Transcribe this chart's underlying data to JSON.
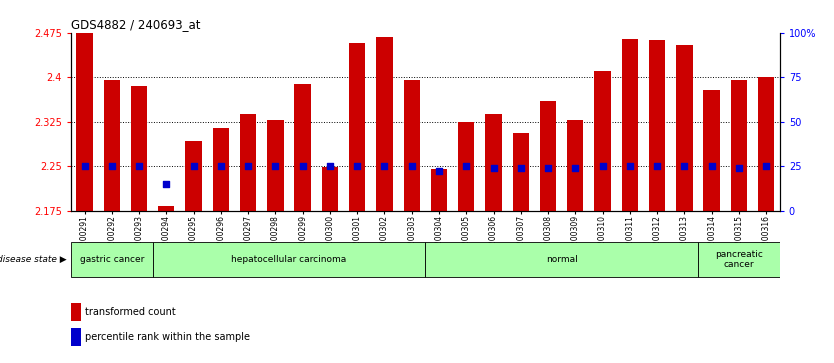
{
  "title": "GDS4882 / 240693_at",
  "samples": [
    "GSM1200291",
    "GSM1200292",
    "GSM1200293",
    "GSM1200294",
    "GSM1200295",
    "GSM1200296",
    "GSM1200297",
    "GSM1200298",
    "GSM1200299",
    "GSM1200300",
    "GSM1200301",
    "GSM1200302",
    "GSM1200303",
    "GSM1200304",
    "GSM1200305",
    "GSM1200306",
    "GSM1200307",
    "GSM1200308",
    "GSM1200309",
    "GSM1200310",
    "GSM1200311",
    "GSM1200312",
    "GSM1200313",
    "GSM1200314",
    "GSM1200315",
    "GSM1200316"
  ],
  "bar_values": [
    2.475,
    2.395,
    2.385,
    2.183,
    2.293,
    2.315,
    2.338,
    2.328,
    2.388,
    2.248,
    2.458,
    2.468,
    2.395,
    2.245,
    2.325,
    2.338,
    2.305,
    2.36,
    2.328,
    2.41,
    2.465,
    2.462,
    2.455,
    2.378,
    2.395,
    2.4
  ],
  "percentile_values": [
    25,
    25,
    25,
    15,
    25,
    25,
    25,
    25,
    25,
    25,
    25,
    25,
    25,
    22,
    25,
    24,
    24,
    24,
    24,
    25,
    25,
    25,
    25,
    25,
    24,
    25
  ],
  "bar_color": "#cc0000",
  "dot_color": "#0000cc",
  "ylim_left": [
    2.175,
    2.475
  ],
  "ylim_right": [
    0,
    100
  ],
  "yticks_left": [
    2.175,
    2.25,
    2.325,
    2.4,
    2.475
  ],
  "ytick_labels_left": [
    "2.175",
    "2.25",
    "2.325",
    "2.4",
    "2.475"
  ],
  "yticks_right": [
    0,
    25,
    50,
    75,
    100
  ],
  "ytick_labels_right": [
    "0",
    "25",
    "50",
    "75",
    "100%"
  ],
  "grid_values": [
    2.25,
    2.325,
    2.4
  ],
  "disease_groups": [
    {
      "label": "gastric cancer",
      "start": 0,
      "end": 3
    },
    {
      "label": "hepatocellular carcinoma",
      "start": 3,
      "end": 13
    },
    {
      "label": "normal",
      "start": 13,
      "end": 23
    },
    {
      "label": "pancreatic\ncancer",
      "start": 23,
      "end": 26
    }
  ],
  "disease_group_color": "#aaffaa",
  "disease_state_label": "disease state",
  "legend_items": [
    {
      "color": "#cc0000",
      "label": "transformed count"
    },
    {
      "color": "#0000cc",
      "label": "percentile rank within the sample"
    }
  ],
  "bar_width": 0.6,
  "background_color": "#ffffff"
}
